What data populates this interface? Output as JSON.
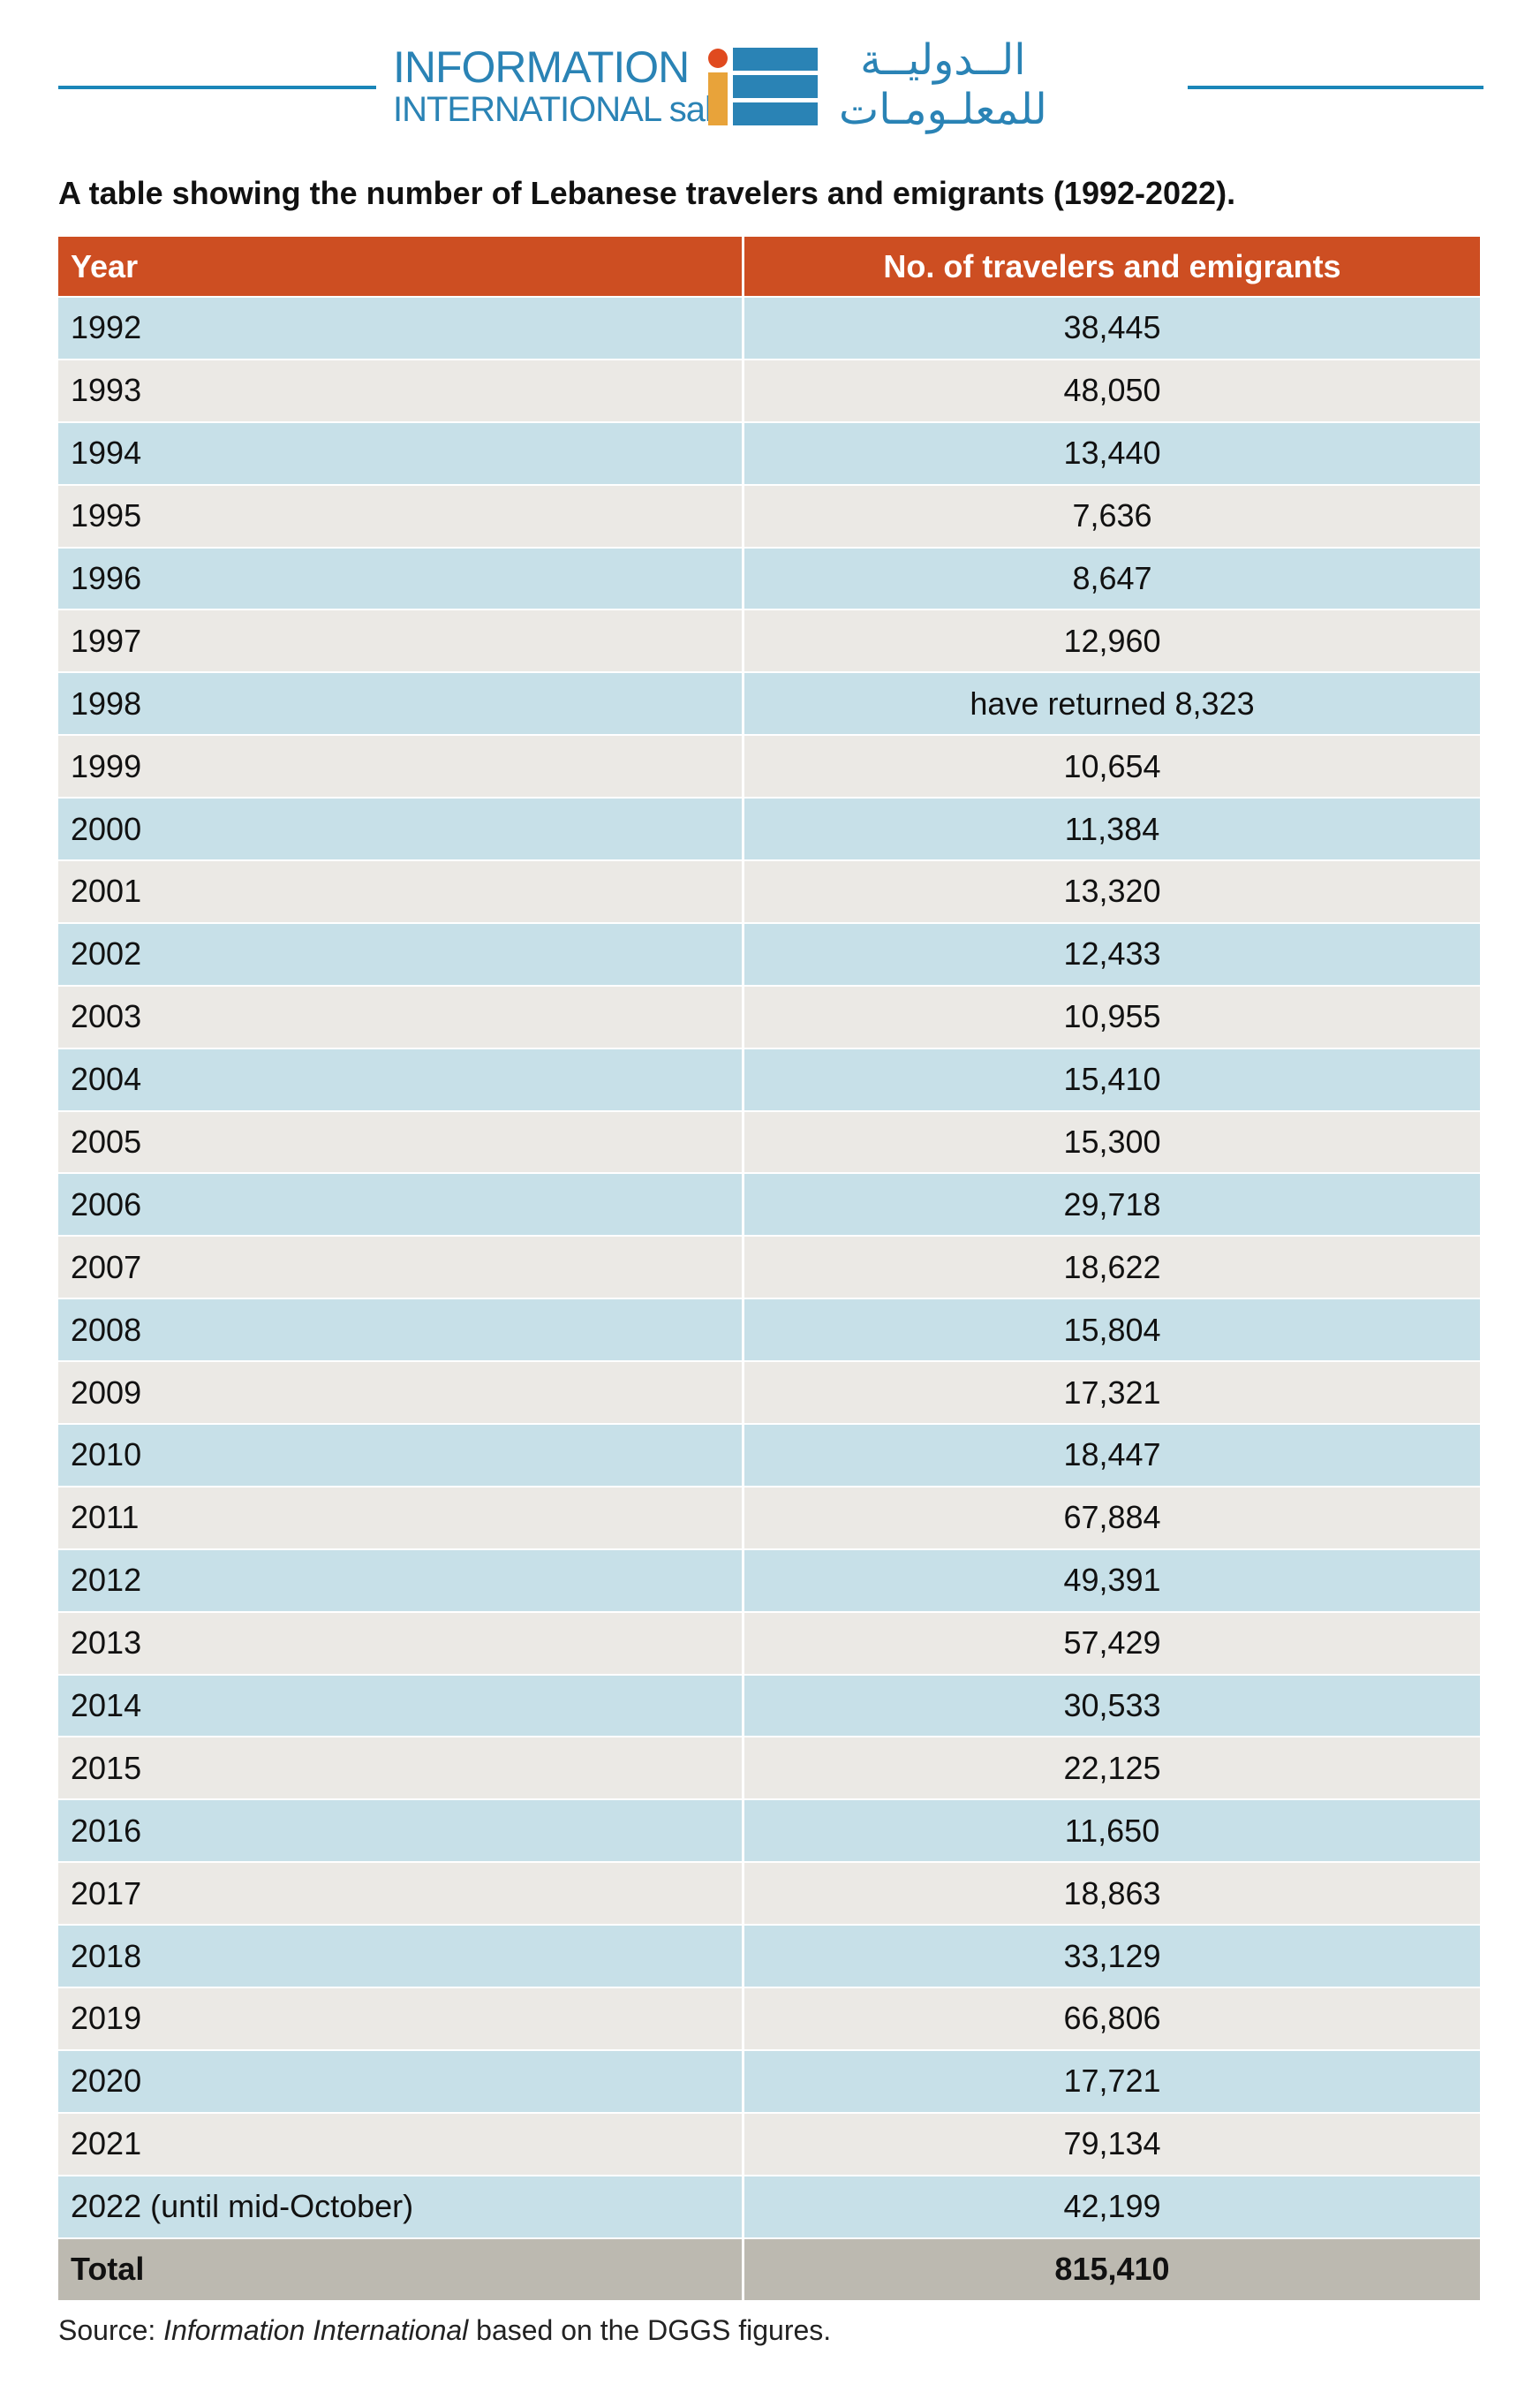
{
  "header": {
    "logo_en": [
      "INFORMATION",
      "INTERNATIONAL sal"
    ],
    "logo_ar": [
      "الــدوليــة",
      "للمعلـومـات"
    ]
  },
  "title": "A table showing the number of Lebanese travelers and emigrants (1992-2022).",
  "table": {
    "columns": [
      "Year",
      "No. of travelers and emigrants"
    ],
    "rows": [
      [
        "1992",
        "38,445"
      ],
      [
        "1993",
        "48,050"
      ],
      [
        "1994",
        "13,440"
      ],
      [
        "1995",
        "7,636"
      ],
      [
        "1996",
        "8,647"
      ],
      [
        "1997",
        "12,960"
      ],
      [
        "1998",
        "have returned 8,323"
      ],
      [
        "1999",
        "10,654"
      ],
      [
        "2000",
        "11,384"
      ],
      [
        "2001",
        "13,320"
      ],
      [
        "2002",
        "12,433"
      ],
      [
        "2003",
        "10,955"
      ],
      [
        "2004",
        "15,410"
      ],
      [
        "2005",
        "15,300"
      ],
      [
        "2006",
        "29,718"
      ],
      [
        "2007",
        "18,622"
      ],
      [
        "2008",
        "15,804"
      ],
      [
        "2009",
        "17,321"
      ],
      [
        "2010",
        "18,447"
      ],
      [
        "2011",
        "67,884"
      ],
      [
        "2012",
        "49,391"
      ],
      [
        "2013",
        "57,429"
      ],
      [
        "2014",
        "30,533"
      ],
      [
        "2015",
        "22,125"
      ],
      [
        "2016",
        "11,650"
      ],
      [
        "2017",
        "18,863"
      ],
      [
        "2018",
        "33,129"
      ],
      [
        "2019",
        "66,806"
      ],
      [
        "2020",
        "17,721"
      ],
      [
        "2021",
        "79,134"
      ],
      [
        "2022 (until mid-October)",
        "42,199"
      ]
    ],
    "total": [
      "Total",
      "815,410"
    ]
  },
  "source": [
    "Source: ",
    "Information International",
    " based on the DGGS figures."
  ]
}
